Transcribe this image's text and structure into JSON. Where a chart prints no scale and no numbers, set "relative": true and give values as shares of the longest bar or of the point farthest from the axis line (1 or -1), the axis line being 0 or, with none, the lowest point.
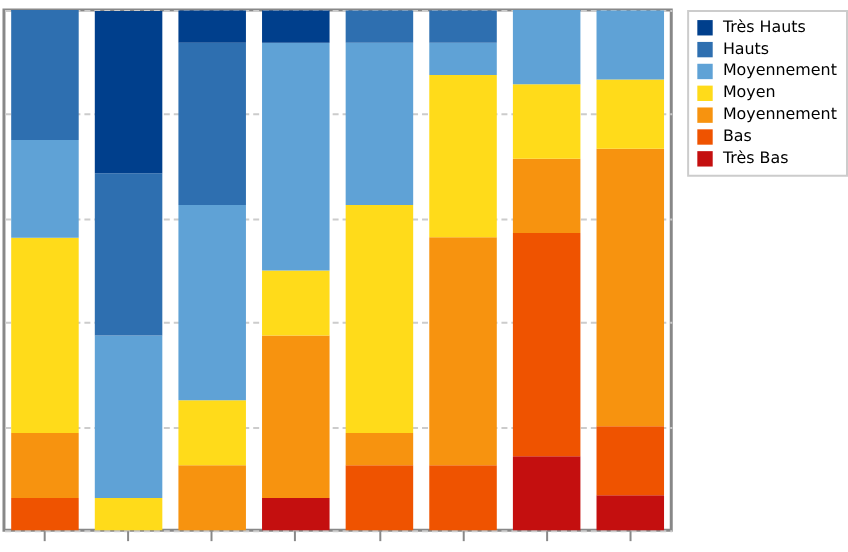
{
  "chart_data": {
    "type": "bar",
    "stacked": true,
    "relative": true,
    "grid": "y",
    "legend": "top right",
    "categories": [
      null,
      null,
      null,
      null,
      null,
      null,
      null,
      null
    ],
    "series": [
      {
        "name": "Très Bas",
        "color": "#c40f0f",
        "values": [
          0,
          0,
          0,
          0.062,
          0,
          0,
          0.142,
          0.067
        ]
      },
      {
        "name": "Bas",
        "color": "#ef5300",
        "values": [
          0.062,
          0,
          0,
          0,
          0.125,
          0.125,
          0.429,
          0.133
        ]
      },
      {
        "name": "Moyennement",
        "color": "#f7930f",
        "values": [
          0.125,
          0,
          0.125,
          0.312,
          0.062,
          0.438,
          0.143,
          0.533
        ]
      },
      {
        "name": "Moyen",
        "color": "#ffdb1a",
        "values": [
          0.375,
          0.062,
          0.125,
          0.125,
          0.438,
          0.312,
          0.143,
          0.133
        ]
      },
      {
        "name": "Moyennement",
        "color": "#5fa2d6",
        "values": [
          0.188,
          0.312,
          0.375,
          0.438,
          0.312,
          0.062,
          0.143,
          0.133
        ]
      },
      {
        "name": "Hauts",
        "color": "#2e6fb0",
        "values": [
          0.25,
          0.312,
          0.312,
          0,
          0.062,
          0.062,
          0,
          0
        ]
      },
      {
        "name": "Très Hauts",
        "color": "#003f8c",
        "values": [
          0,
          0.312,
          0.062,
          0.062,
          0,
          0,
          0,
          0
        ]
      }
    ]
  }
}
